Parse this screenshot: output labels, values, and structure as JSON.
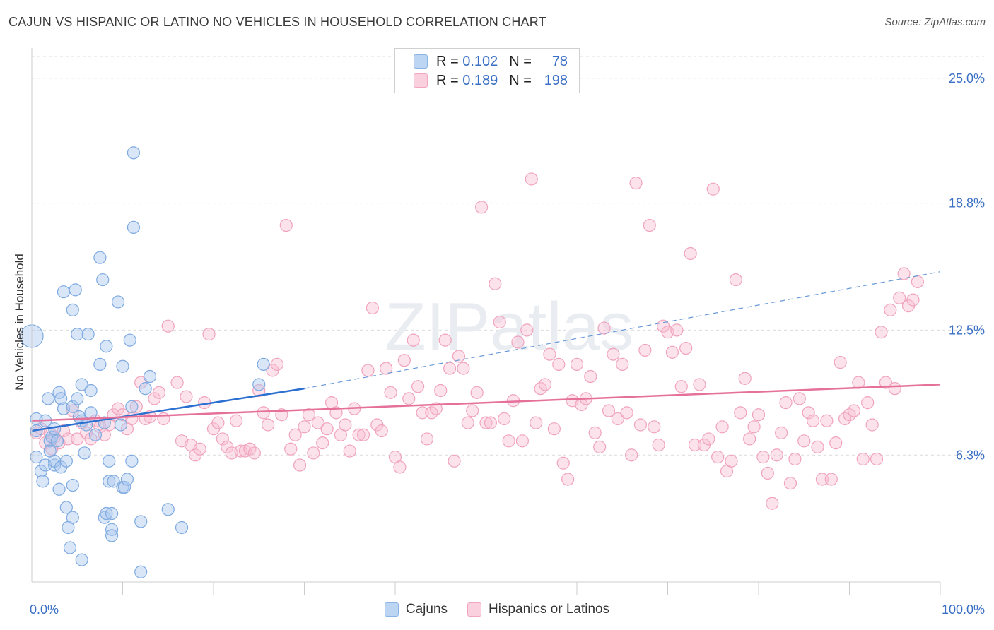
{
  "title": "CAJUN VS HISPANIC OR LATINO NO VEHICLES IN HOUSEHOLD CORRELATION CHART",
  "source": "Source: ZipAtlas.com",
  "watermark": "ZIPatlas",
  "legend": {
    "rows": [
      {
        "r_label": "R =",
        "r_value": "0.102",
        "n_label": "N =",
        "n_value": "78"
      },
      {
        "r_label": "R =",
        "r_value": "0.189",
        "n_label": "N =",
        "n_value": "198"
      }
    ]
  },
  "chart_data": {
    "type": "scatter",
    "title": "CAJUN VS HISPANIC OR LATINO NO VEHICLES IN HOUSEHOLD CORRELATION CHART",
    "xlabel": "",
    "ylabel": "No Vehicles in Household",
    "xlim": [
      0,
      100
    ],
    "ylim": [
      0,
      26.5
    ],
    "x_tick_labels": [
      "0.0%",
      "100.0%"
    ],
    "y_ticks": [
      6.3,
      12.5,
      18.8,
      25.0
    ],
    "y_tick_labels": [
      "6.3%",
      "12.5%",
      "18.8%",
      "25.0%"
    ],
    "grid": "horizontal dashed",
    "legend_position": "top-center",
    "colors": {
      "cajun": "#8ab4e8",
      "cajun_line": "#2b6fd0",
      "hispanic": "#f2a7bf",
      "hispanic_line": "#e5709a"
    },
    "series": [
      {
        "name": "Cajuns",
        "trend": {
          "x0": 0,
          "y0": 7.5,
          "x1": 30,
          "y1": 9.6,
          "dash_x1": 100,
          "dash_y1": 15.4
        },
        "points": [
          [
            0,
            12.2
          ],
          [
            0.5,
            8.1
          ],
          [
            0.5,
            6.2
          ],
          [
            0.5,
            7.5
          ],
          [
            1.0,
            5.5
          ],
          [
            1.2,
            5.0
          ],
          [
            1.5,
            5.8
          ],
          [
            1.5,
            8.0
          ],
          [
            1.8,
            9.1
          ],
          [
            2.0,
            7.0
          ],
          [
            2.0,
            6.5
          ],
          [
            2.2,
            7.2
          ],
          [
            2.5,
            5.8
          ],
          [
            2.5,
            6.0
          ],
          [
            2.5,
            7.6
          ],
          [
            2.8,
            7.0
          ],
          [
            3.0,
            4.6
          ],
          [
            3.0,
            9.4
          ],
          [
            3.2,
            9.1
          ],
          [
            3.2,
            5.7
          ],
          [
            3.5,
            14.4
          ],
          [
            3.5,
            8.6
          ],
          [
            3.8,
            6.0
          ],
          [
            3.8,
            3.7
          ],
          [
            4.0,
            2.7
          ],
          [
            4.2,
            1.7
          ],
          [
            4.5,
            3.2
          ],
          [
            4.5,
            4.8
          ],
          [
            4.5,
            8.7
          ],
          [
            4.5,
            13.5
          ],
          [
            4.8,
            14.5
          ],
          [
            5.0,
            12.3
          ],
          [
            5.0,
            9.1
          ],
          [
            5.2,
            8.2
          ],
          [
            5.5,
            1.1
          ],
          [
            5.5,
            9.8
          ],
          [
            5.5,
            8.0
          ],
          [
            5.8,
            6.4
          ],
          [
            6.0,
            7.8
          ],
          [
            6.2,
            12.3
          ],
          [
            6.5,
            9.5
          ],
          [
            6.5,
            8.4
          ],
          [
            7.0,
            7.3
          ],
          [
            7.5,
            16.1
          ],
          [
            7.5,
            10.8
          ],
          [
            7.8,
            15.0
          ],
          [
            8.0,
            7.9
          ],
          [
            8.0,
            3.2
          ],
          [
            8.2,
            11.7
          ],
          [
            8.2,
            3.4
          ],
          [
            8.5,
            6.0
          ],
          [
            8.5,
            5.0
          ],
          [
            8.8,
            3.4
          ],
          [
            8.8,
            2.6
          ],
          [
            8.8,
            2.3
          ],
          [
            9.0,
            5.0
          ],
          [
            9.5,
            13.9
          ],
          [
            9.8,
            7.8
          ],
          [
            10.0,
            10.7
          ],
          [
            10.0,
            4.7
          ],
          [
            10.2,
            4.7
          ],
          [
            10.5,
            5.1
          ],
          [
            10.8,
            12.0
          ],
          [
            11.0,
            6.0
          ],
          [
            11.0,
            8.7
          ],
          [
            11.2,
            17.6
          ],
          [
            11.2,
            21.3
          ],
          [
            12.0,
            3.0
          ],
          [
            12.0,
            0.5
          ],
          [
            12.5,
            9.6
          ],
          [
            13.0,
            10.2
          ],
          [
            15.0,
            3.6
          ],
          [
            16.5,
            2.7
          ],
          [
            25.0,
            9.8
          ],
          [
            25.5,
            10.8
          ]
        ]
      },
      {
        "name": "Hispanics or Latinos",
        "trend": {
          "x0": 0,
          "y0": 8.0,
          "x1": 100,
          "y1": 9.8
        },
        "points": [
          [
            0.5,
            7.4
          ],
          [
            1.0,
            7.6
          ],
          [
            1.5,
            6.9
          ],
          [
            2.0,
            7.4
          ],
          [
            2.2,
            6.6
          ],
          [
            2.5,
            7.2
          ],
          [
            3.0,
            6.9
          ],
          [
            3.5,
            7.5
          ],
          [
            4.0,
            7.1
          ],
          [
            4.5,
            8.5
          ],
          [
            5.0,
            7.1
          ],
          [
            5.5,
            7.9
          ],
          [
            6.0,
            7.4
          ],
          [
            6.5,
            7.1
          ],
          [
            7.0,
            8.0
          ],
          [
            7.5,
            7.7
          ],
          [
            8.0,
            7.3
          ],
          [
            8.5,
            7.8
          ],
          [
            9.0,
            8.3
          ],
          [
            9.5,
            8.6
          ],
          [
            10.0,
            8.3
          ],
          [
            10.5,
            7.6
          ],
          [
            11.0,
            8.1
          ],
          [
            11.5,
            8.7
          ],
          [
            12.0,
            9.9
          ],
          [
            12.5,
            8.1
          ],
          [
            13.0,
            8.2
          ],
          [
            13.5,
            9.1
          ],
          [
            14.0,
            9.4
          ],
          [
            14.5,
            8.1
          ],
          [
            15.0,
            12.7
          ],
          [
            16.0,
            9.9
          ],
          [
            16.5,
            7.0
          ],
          [
            17.0,
            9.2
          ],
          [
            17.5,
            6.8
          ],
          [
            18.0,
            6.3
          ],
          [
            18.5,
            6.6
          ],
          [
            19.0,
            8.9
          ],
          [
            19.5,
            12.3
          ],
          [
            20.0,
            7.6
          ],
          [
            20.5,
            7.9
          ],
          [
            21.0,
            7.1
          ],
          [
            21.5,
            6.7
          ],
          [
            22.0,
            6.4
          ],
          [
            22.5,
            8.0
          ],
          [
            23.0,
            6.5
          ],
          [
            23.5,
            6.5
          ],
          [
            24.0,
            6.6
          ],
          [
            24.5,
            6.4
          ],
          [
            25.0,
            9.5
          ],
          [
            25.5,
            8.4
          ],
          [
            26.0,
            7.8
          ],
          [
            26.5,
            10.5
          ],
          [
            27.0,
            10.8
          ],
          [
            27.5,
            8.3
          ],
          [
            28.0,
            17.7
          ],
          [
            28.5,
            6.6
          ],
          [
            29.0,
            7.3
          ],
          [
            29.5,
            5.8
          ],
          [
            30.0,
            7.7
          ],
          [
            30.5,
            8.3
          ],
          [
            31.0,
            6.4
          ],
          [
            31.5,
            7.9
          ],
          [
            32.0,
            6.9
          ],
          [
            32.5,
            7.6
          ],
          [
            33.0,
            8.9
          ],
          [
            33.5,
            8.4
          ],
          [
            34.0,
            7.3
          ],
          [
            34.5,
            7.8
          ],
          [
            35.0,
            6.5
          ],
          [
            35.5,
            8.6
          ],
          [
            36.0,
            7.3
          ],
          [
            36.5,
            7.3
          ],
          [
            37.0,
            10.5
          ],
          [
            37.5,
            13.6
          ],
          [
            38.0,
            7.8
          ],
          [
            38.5,
            7.5
          ],
          [
            39.0,
            10.6
          ],
          [
            39.5,
            9.4
          ],
          [
            40.0,
            6.2
          ],
          [
            40.5,
            5.7
          ],
          [
            41.0,
            11.0
          ],
          [
            41.5,
            9.1
          ],
          [
            42.0,
            12.0
          ],
          [
            42.5,
            9.7
          ],
          [
            43.0,
            8.4
          ],
          [
            43.5,
            7.1
          ],
          [
            44.0,
            8.4
          ],
          [
            44.5,
            8.6
          ],
          [
            45.0,
            9.5
          ],
          [
            45.5,
            12.0
          ],
          [
            46.0,
            10.6
          ],
          [
            46.5,
            6.0
          ],
          [
            47.0,
            11.2
          ],
          [
            47.5,
            10.6
          ],
          [
            48.0,
            7.9
          ],
          [
            48.5,
            8.5
          ],
          [
            49.0,
            9.4
          ],
          [
            49.5,
            18.6
          ],
          [
            50.0,
            7.9
          ],
          [
            50.5,
            7.9
          ],
          [
            51.0,
            14.8
          ],
          [
            51.5,
            12.9
          ],
          [
            52.0,
            8.1
          ],
          [
            52.5,
            7.0
          ],
          [
            53.0,
            9.0
          ],
          [
            53.5,
            11.9
          ],
          [
            54.0,
            7.0
          ],
          [
            54.5,
            12.5
          ],
          [
            55.0,
            20.0
          ],
          [
            55.5,
            7.9
          ],
          [
            56.0,
            9.6
          ],
          [
            56.5,
            9.8
          ],
          [
            57.0,
            11.3
          ],
          [
            57.5,
            7.6
          ],
          [
            58.0,
            10.8
          ],
          [
            58.5,
            5.9
          ],
          [
            59.0,
            5.1
          ],
          [
            59.5,
            9.0
          ],
          [
            60.0,
            10.8
          ],
          [
            60.5,
            8.8
          ],
          [
            61.0,
            9.1
          ],
          [
            61.5,
            10.2
          ],
          [
            62.0,
            7.4
          ],
          [
            62.5,
            6.7
          ],
          [
            63.0,
            12.6
          ],
          [
            63.5,
            8.5
          ],
          [
            64.0,
            11.3
          ],
          [
            64.5,
            8.1
          ],
          [
            65.0,
            10.8
          ],
          [
            65.5,
            8.4
          ],
          [
            66.0,
            6.3
          ],
          [
            66.5,
            19.8
          ],
          [
            67.0,
            7.8
          ],
          [
            67.5,
            11.5
          ],
          [
            68.0,
            17.7
          ],
          [
            68.5,
            7.7
          ],
          [
            69.0,
            6.8
          ],
          [
            69.5,
            12.7
          ],
          [
            70.0,
            12.4
          ],
          [
            70.5,
            11.4
          ],
          [
            71.0,
            12.5
          ],
          [
            71.5,
            9.7
          ],
          [
            72.0,
            11.6
          ],
          [
            72.5,
            16.3
          ],
          [
            73.0,
            6.8
          ],
          [
            73.5,
            9.8
          ],
          [
            74.0,
            6.8
          ],
          [
            74.5,
            7.1
          ],
          [
            75.0,
            19.5
          ],
          [
            75.5,
            6.2
          ],
          [
            76.0,
            7.7
          ],
          [
            76.5,
            5.5
          ],
          [
            77.0,
            6.0
          ],
          [
            77.5,
            15.0
          ],
          [
            78.0,
            8.4
          ],
          [
            78.5,
            10.1
          ],
          [
            79.0,
            7.1
          ],
          [
            79.5,
            7.7
          ],
          [
            80.0,
            8.3
          ],
          [
            80.5,
            6.2
          ],
          [
            81.0,
            5.4
          ],
          [
            81.5,
            3.9
          ],
          [
            82.0,
            6.3
          ],
          [
            82.5,
            7.4
          ],
          [
            83.0,
            8.9
          ],
          [
            83.5,
            4.9
          ],
          [
            84.0,
            6.1
          ],
          [
            84.5,
            9.1
          ],
          [
            85.0,
            7.0
          ],
          [
            85.5,
            8.4
          ],
          [
            86.0,
            8.0
          ],
          [
            86.5,
            6.7
          ],
          [
            87.0,
            5.1
          ],
          [
            87.5,
            8.0
          ],
          [
            88.0,
            5.1
          ],
          [
            88.5,
            6.9
          ],
          [
            89.0,
            10.9
          ],
          [
            89.5,
            8.1
          ],
          [
            90.0,
            8.3
          ],
          [
            90.5,
            8.5
          ],
          [
            91.0,
            9.9
          ],
          [
            91.5,
            6.1
          ],
          [
            92.0,
            8.9
          ],
          [
            92.5,
            7.8
          ],
          [
            93.0,
            6.1
          ],
          [
            93.5,
            12.4
          ],
          [
            94.0,
            9.9
          ],
          [
            94.5,
            13.5
          ],
          [
            95.0,
            9.6
          ],
          [
            95.5,
            14.1
          ],
          [
            96.0,
            15.3
          ],
          [
            96.5,
            13.7
          ],
          [
            97.0,
            14.0
          ],
          [
            97.5,
            14.9
          ]
        ]
      }
    ]
  },
  "bottom_legend": {
    "items": [
      {
        "label": "Cajuns"
      },
      {
        "label": "Hispanics or Latinos"
      }
    ]
  }
}
